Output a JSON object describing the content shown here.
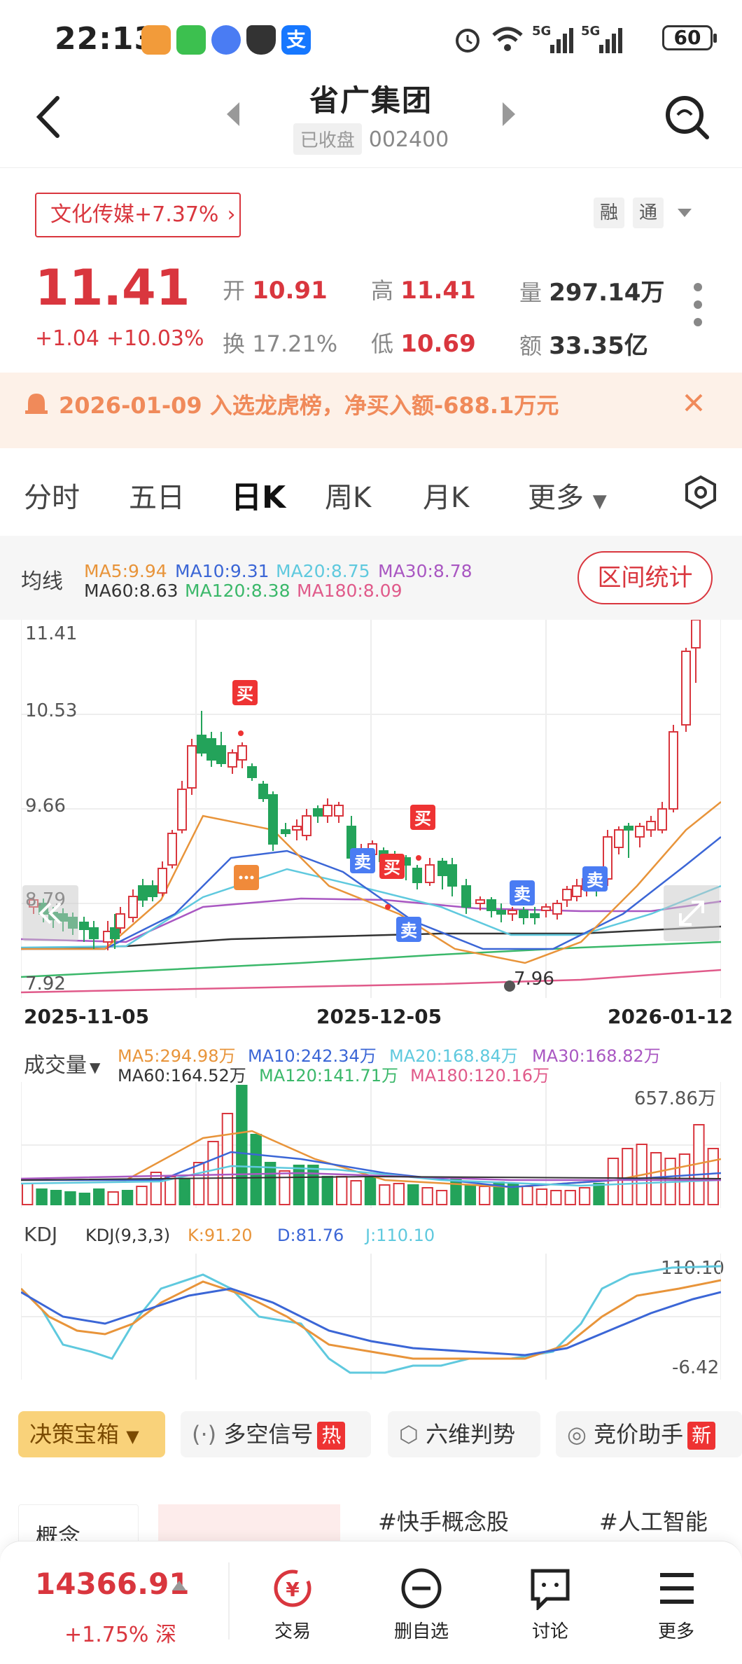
{
  "status_bar": {
    "time": "22:13",
    "right": "60"
  },
  "header": {
    "title": "省广集团",
    "state_tag": "已收盘",
    "code": "002400"
  },
  "sector": {
    "label": "文化传媒",
    "change": "+7.37%"
  },
  "tags": [
    "融",
    "通"
  ],
  "quote": {
    "price": "11.41",
    "change": "+1.04",
    "change_pct": "+10.03%",
    "open_label": "开",
    "open": "10.91",
    "high_label": "高",
    "high": "11.41",
    "volume_label": "量",
    "volume": "297.14万",
    "turnover_label": "换",
    "turnover": "17.21%",
    "low_label": "低",
    "low": "10.69",
    "amount_label": "额",
    "amount": "33.35亿"
  },
  "notice": {
    "text": "2026-01-09 入选龙虎榜，净买入额-688.1万元"
  },
  "tabs": [
    "分时",
    "五日",
    "日K",
    "周K",
    "月K",
    "更多"
  ],
  "ma": {
    "label": "均线",
    "ma5": "MA5:9.94",
    "ma10": "MA10:9.31",
    "ma20": "MA20:8.75",
    "ma30": "MA30:8.78",
    "ma60": "MA60:8.63",
    "ma120": "MA120:8.38",
    "ma180": "MA180:8.09",
    "range_button": "区间统计"
  },
  "colors": {
    "up": "#d9363e",
    "down": "#23a35a",
    "ma5": "#e8943a",
    "ma10": "#3b66d6",
    "ma20": "#5fc9de",
    "ma30": "#a957c2",
    "ma60": "#333333",
    "ma120": "#3bb86a",
    "ma180": "#e05a8a"
  },
  "kline": {
    "y_ticks": [
      "11.41",
      "10.53",
      "9.66",
      "8.79",
      "7.92"
    ],
    "low_marker": "7.96",
    "dates": [
      "2025-11-05",
      "2025-12-05",
      "2026-01-12"
    ],
    "buy_label": "买",
    "sell_label": "卖"
  },
  "volume": {
    "label": "成交量",
    "ma5": "MA5:294.98万",
    "ma10": "MA10:242.34万",
    "ma20": "MA20:168.84万",
    "ma30": "MA30:168.82万",
    "ma60": "MA60:164.52万",
    "ma120": "MA120:141.71万",
    "ma180": "MA180:120.16万",
    "max": "657.86万"
  },
  "kdj": {
    "label": "KDJ",
    "params": "KDJ(9,3,3)",
    "k": "K:91.20",
    "d": "D:81.76",
    "j": "J:110.10",
    "max": "110.10",
    "min": "-6.42"
  },
  "tools": [
    {
      "label": "决策宝箱"
    },
    {
      "label": "多空信号",
      "badge": "热"
    },
    {
      "label": "六维判势"
    },
    {
      "label": "竞价助手",
      "badge": "新"
    }
  ],
  "concepts": [
    "概念",
    "#快手概念股",
    "#人工智能"
  ],
  "bottom": {
    "index_value": "14366.91",
    "index_change": "+1.75%",
    "index_market": "深",
    "nav": [
      "交易",
      "删自选",
      "讨论",
      "更多"
    ]
  }
}
